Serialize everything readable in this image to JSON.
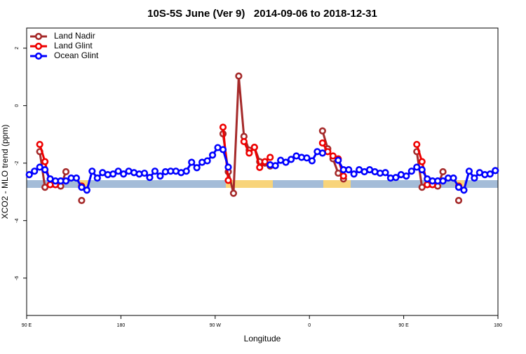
{
  "chart_data": {
    "type": "line",
    "title": "10S-5S June (Ver 9)   2014-09-06 to 2018-12-31",
    "x_label": "Longitude",
    "y_label": "XCO2 - MLO trend (ppm)",
    "xlim": [
      90,
      540
    ],
    "ylim": [
      -7.3,
      2.7
    ],
    "xticks": [
      {
        "value": 90,
        "label": "90 E"
      },
      180,
      {
        "value": 270,
        "label": "90 W"
      },
      {
        "value": 360,
        "label": "0"
      },
      {
        "value": 450,
        "label": "90 E"
      },
      {
        "value": 540,
        "label": "180"
      }
    ],
    "yticks": [
      2,
      0,
      -2,
      -4,
      -6
    ],
    "legend": "top-left",
    "x": [
      92.5,
      97.5,
      102.5,
      107.5,
      112.5,
      117.5,
      122.5,
      127.5,
      132.5,
      137.5,
      142.5,
      147.5,
      152.5,
      157.5,
      162.5,
      167.5,
      172.5,
      177.5,
      182.5,
      187.5,
      192.5,
      197.5,
      202.5,
      207.5,
      212.5,
      217.5,
      222.5,
      227.5,
      232.5,
      237.5,
      242.5,
      247.5,
      252.5,
      257.5,
      262.5,
      267.5,
      272.5,
      277.5,
      282.5,
      287.5,
      292.5,
      297.5,
      302.5,
      307.5,
      312.5,
      317.5,
      322.5,
      327.5,
      332.5,
      337.5,
      342.5,
      347.5,
      352.5,
      357.5,
      362.5,
      367.5,
      372.5,
      377.5,
      382.5,
      387.5,
      392.5,
      397.5,
      402.5,
      407.5,
      412.5,
      417.5,
      422.5,
      427.5,
      432.5,
      437.5,
      442.5,
      447.5,
      452.5,
      457.5,
      462.5,
      467.5,
      472.5,
      477.5,
      482.5,
      487.5,
      492.5,
      497.5,
      502.5,
      507.5,
      512.5,
      517.5,
      522.5,
      527.5,
      532.5,
      537.5
    ],
    "series": [
      {
        "name": "Land Nadir",
        "color": "#a52a2a",
        "values": [
          null,
          null,
          -1.6,
          -2.84,
          -2.75,
          -2.75,
          -2.8,
          -2.3,
          null,
          null,
          -3.3,
          null,
          null,
          null,
          null,
          null,
          null,
          null,
          null,
          null,
          null,
          null,
          null,
          null,
          null,
          null,
          null,
          null,
          null,
          null,
          null,
          null,
          null,
          null,
          null,
          null,
          null,
          -0.98,
          -2.3,
          -3.05,
          1.03,
          -1.07,
          -1.55,
          -1.45,
          -1.95,
          -2.0,
          -2.1,
          null,
          null,
          null,
          null,
          null,
          null,
          null,
          null,
          null,
          -0.88,
          -1.5,
          -1.85,
          -2.35,
          -2.55,
          null,
          null,
          null,
          null,
          null,
          null,
          null,
          null,
          null,
          null,
          null,
          null,
          null,
          -1.6,
          -2.84,
          -2.75,
          -2.75,
          -2.8,
          -2.3,
          null,
          null,
          -3.3,
          null,
          null,
          null,
          null,
          null,
          null,
          null
        ]
      },
      {
        "name": "Land Glint",
        "color": "#ee0000",
        "values": [
          null,
          null,
          -1.35,
          -1.95,
          -2.75,
          -2.75,
          null,
          null,
          null,
          null,
          -2.8,
          null,
          null,
          null,
          null,
          null,
          null,
          null,
          null,
          null,
          null,
          null,
          null,
          null,
          null,
          null,
          null,
          null,
          null,
          null,
          null,
          null,
          null,
          null,
          null,
          null,
          null,
          -0.75,
          -2.6,
          null,
          null,
          -1.25,
          -1.65,
          -1.45,
          -2.15,
          -1.95,
          -1.8,
          null,
          null,
          null,
          null,
          null,
          null,
          null,
          null,
          null,
          -1.3,
          -1.6,
          -1.75,
          -1.85,
          -2.45,
          null,
          null,
          null,
          null,
          null,
          null,
          null,
          null,
          null,
          null,
          null,
          null,
          null,
          -1.35,
          -1.95,
          -2.75,
          -2.75,
          null,
          null,
          null,
          null,
          -2.8,
          null,
          null,
          null,
          null,
          null,
          null,
          null
        ]
      },
      {
        "name": "Ocean Glint",
        "color": "#0000ff",
        "values": [
          -2.4,
          -2.28,
          -2.14,
          -2.23,
          -2.55,
          -2.62,
          -2.62,
          -2.62,
          -2.52,
          -2.52,
          -2.84,
          -2.94,
          -2.28,
          -2.52,
          -2.33,
          -2.4,
          -2.38,
          -2.28,
          -2.38,
          -2.28,
          -2.33,
          -2.38,
          -2.35,
          -2.5,
          -2.28,
          -2.45,
          -2.3,
          -2.28,
          -2.28,
          -2.33,
          -2.28,
          -1.97,
          -2.16,
          -1.97,
          -1.92,
          -1.72,
          -1.46,
          -1.53,
          -2.14,
          null,
          null,
          null,
          null,
          null,
          null,
          null,
          -2.06,
          -2.09,
          -1.9,
          -1.97,
          -1.87,
          -1.75,
          -1.8,
          -1.82,
          -1.92,
          -1.6,
          -1.65,
          null,
          null,
          -1.9,
          -2.23,
          -2.23,
          -2.38,
          -2.23,
          -2.3,
          -2.23,
          -2.3,
          -2.35,
          -2.33,
          -2.52,
          -2.5,
          -2.4,
          -2.45,
          -2.28,
          -2.14,
          -2.23,
          -2.55,
          -2.62,
          -2.62,
          -2.62,
          -2.52,
          -2.52,
          -2.84,
          -2.94,
          -2.28,
          -2.52,
          -2.33,
          -2.4,
          -2.38,
          -2.26
        ]
      }
    ]
  }
}
